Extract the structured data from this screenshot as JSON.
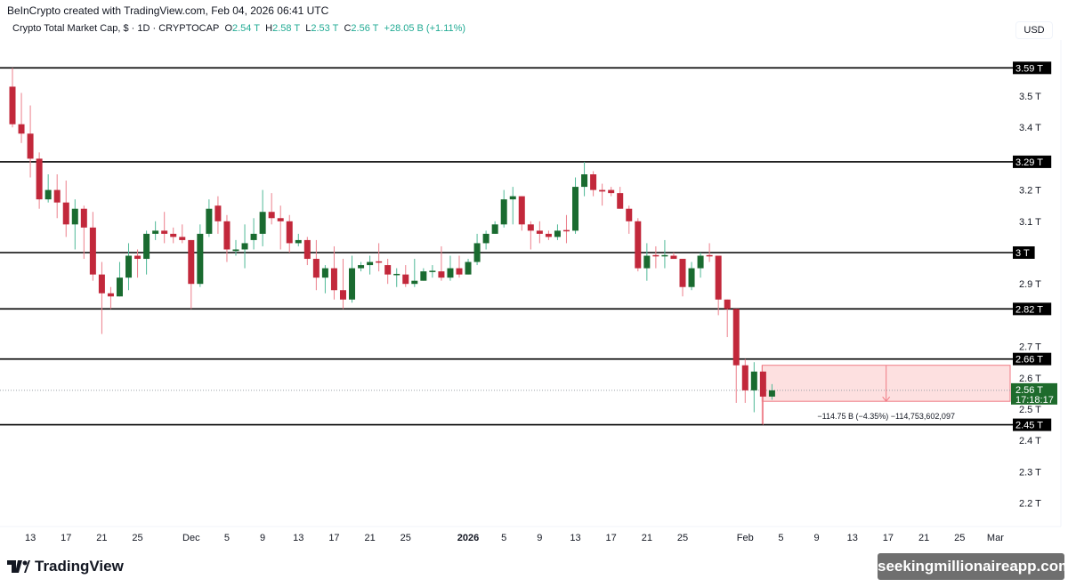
{
  "header": {
    "credit": "BeInCrypto created with TradingView.com, Feb 04, 2026 06:41 UTC",
    "symbol": "Crypto Total Market Cap, $ · 1D · CRYPTOCAP",
    "o_label": "O",
    "o_value": "2.54 T",
    "h_label": "H",
    "h_value": "2.58 T",
    "l_label": "L",
    "l_value": "2.53 T",
    "c_label": "C",
    "c_value": "2.56 T",
    "change": "+28.05 B (+1.11%)",
    "currency": "USD"
  },
  "footer": {
    "logo_text": "TradingView",
    "watermark": "seekingmillionaireapp.com"
  },
  "colors": {
    "up_body": "#1a6b30",
    "up_wick": "#4fb997",
    "down_body": "#c2283b",
    "down_wick": "#ec7f8b",
    "level_line": "#000000",
    "measure_fill": "#fde0e0",
    "measure_border": "#f07a84",
    "last_price_bg": "#1e6b2c"
  },
  "chart_data": {
    "type": "candlestick",
    "title": "Crypto Total Market Cap, $ · 1D · CRYPTOCAP",
    "unit": "T",
    "start_date": "2025-11-11",
    "ylim": [
      2.12,
      3.68
    ],
    "y_ticks": [
      "3.5 T",
      "3.4 T",
      "3.2 T",
      "3.1 T",
      "2.9 T",
      "2.7 T",
      "2.6 T",
      "2.5 T",
      "2.4 T",
      "2.3 T",
      "2.2 T"
    ],
    "y_tick_values": [
      3.5,
      3.4,
      3.2,
      3.1,
      2.9,
      2.7,
      2.6,
      2.5,
      2.4,
      2.3,
      2.2
    ],
    "x_ticks": [
      {
        "label": "13",
        "date": "2025-11-13"
      },
      {
        "label": "17",
        "date": "2025-11-17"
      },
      {
        "label": "21",
        "date": "2025-11-21"
      },
      {
        "label": "25",
        "date": "2025-11-25"
      },
      {
        "label": "Dec",
        "date": "2025-12-01"
      },
      {
        "label": "5",
        "date": "2025-12-05"
      },
      {
        "label": "9",
        "date": "2025-12-09"
      },
      {
        "label": "13",
        "date": "2025-12-13"
      },
      {
        "label": "17",
        "date": "2025-12-17"
      },
      {
        "label": "21",
        "date": "2025-12-21"
      },
      {
        "label": "25",
        "date": "2025-12-25"
      },
      {
        "label": "2026",
        "date": "2026-01-01",
        "bold": true
      },
      {
        "label": "5",
        "date": "2026-01-05"
      },
      {
        "label": "9",
        "date": "2026-01-09"
      },
      {
        "label": "13",
        "date": "2026-01-13"
      },
      {
        "label": "17",
        "date": "2026-01-17"
      },
      {
        "label": "21",
        "date": "2026-01-21"
      },
      {
        "label": "25",
        "date": "2026-01-25"
      },
      {
        "label": "Feb",
        "date": "2026-02-01"
      },
      {
        "label": "5",
        "date": "2026-02-05"
      },
      {
        "label": "9",
        "date": "2026-02-09"
      },
      {
        "label": "13",
        "date": "2026-02-13"
      },
      {
        "label": "17",
        "date": "2026-02-17"
      },
      {
        "label": "21",
        "date": "2026-02-21"
      },
      {
        "label": "25",
        "date": "2026-02-25"
      },
      {
        "label": "Mar",
        "date": "2026-03-01"
      }
    ],
    "ohlc": [
      [
        3.53,
        3.59,
        3.4,
        3.41
      ],
      [
        3.41,
        3.51,
        3.35,
        3.38
      ],
      [
        3.38,
        3.47,
        3.24,
        3.3
      ],
      [
        3.3,
        3.32,
        3.14,
        3.17
      ],
      [
        3.17,
        3.25,
        3.16,
        3.2
      ],
      [
        3.2,
        3.25,
        3.11,
        3.16
      ],
      [
        3.16,
        3.23,
        3.05,
        3.09
      ],
      [
        3.09,
        3.17,
        3.01,
        3.14
      ],
      [
        3.14,
        3.15,
        2.98,
        3.08
      ],
      [
        3.08,
        3.13,
        2.91,
        2.93
      ],
      [
        2.93,
        2.97,
        2.74,
        2.87
      ],
      [
        2.87,
        2.89,
        2.82,
        2.86
      ],
      [
        2.86,
        2.97,
        2.86,
        2.92
      ],
      [
        2.92,
        3.03,
        2.88,
        2.99
      ],
      [
        2.99,
        3.01,
        2.92,
        2.98
      ],
      [
        2.98,
        3.07,
        2.93,
        3.06
      ],
      [
        3.06,
        3.1,
        3.04,
        3.07
      ],
      [
        3.07,
        3.13,
        3.03,
        3.06
      ],
      [
        3.06,
        3.08,
        3.03,
        3.05
      ],
      [
        3.05,
        3.09,
        3.03,
        3.04
      ],
      [
        3.04,
        3.04,
        2.82,
        2.9
      ],
      [
        2.9,
        3.09,
        2.89,
        3.06
      ],
      [
        3.06,
        3.17,
        3.05,
        3.14
      ],
      [
        3.15,
        3.18,
        3.06,
        3.1
      ],
      [
        3.1,
        3.12,
        2.97,
        3.01
      ],
      [
        3.005,
        3.04,
        2.99,
        3.01
      ],
      [
        3.01,
        3.09,
        2.95,
        3.03
      ],
      [
        3.04,
        3.11,
        3.01,
        3.06
      ],
      [
        3.06,
        3.2,
        3.02,
        3.13
      ],
      [
        3.13,
        3.19,
        3.09,
        3.11
      ],
      [
        3.11,
        3.15,
        3.01,
        3.1
      ],
      [
        3.1,
        3.12,
        3.0,
        3.03
      ],
      [
        3.03,
        3.06,
        3.02,
        3.04
      ],
      [
        3.04,
        3.05,
        2.96,
        2.98
      ],
      [
        2.98,
        3.04,
        2.88,
        2.92
      ],
      [
        2.92,
        2.96,
        2.87,
        2.95
      ],
      [
        2.95,
        3.02,
        2.85,
        2.88
      ],
      [
        2.88,
        2.98,
        2.82,
        2.85
      ],
      [
        2.85,
        2.99,
        2.84,
        2.95
      ],
      [
        2.95,
        2.97,
        2.94,
        2.96
      ],
      [
        2.96,
        2.99,
        2.93,
        2.97
      ],
      [
        2.972,
        3.03,
        2.94,
        2.968
      ],
      [
        2.96,
        2.98,
        2.9,
        2.93
      ],
      [
        2.928,
        2.95,
        2.89,
        2.932
      ],
      [
        2.93,
        2.96,
        2.89,
        2.9
      ],
      [
        2.9,
        2.98,
        2.89,
        2.91
      ],
      [
        2.91,
        2.95,
        2.91,
        2.94
      ],
      [
        2.938,
        2.96,
        2.92,
        2.942
      ],
      [
        2.94,
        3.02,
        2.91,
        2.92
      ],
      [
        2.92,
        2.99,
        2.91,
        2.95
      ],
      [
        2.95,
        2.99,
        2.92,
        2.93
      ],
      [
        2.93,
        2.98,
        2.93,
        2.97
      ],
      [
        2.97,
        3.06,
        2.96,
        3.03
      ],
      [
        3.03,
        3.07,
        3.01,
        3.06
      ],
      [
        3.06,
        3.1,
        3.06,
        3.09
      ],
      [
        3.09,
        3.2,
        3.08,
        3.17
      ],
      [
        3.17,
        3.21,
        3.09,
        3.18
      ],
      [
        3.18,
        3.18,
        3.07,
        3.09
      ],
      [
        3.09,
        3.1,
        3.01,
        3.07
      ],
      [
        3.07,
        3.1,
        3.03,
        3.06
      ],
      [
        3.06,
        3.07,
        3.04,
        3.05
      ],
      [
        3.05,
        3.09,
        3.04,
        3.07
      ],
      [
        3.072,
        3.12,
        3.03,
        3.068
      ],
      [
        3.07,
        3.24,
        3.06,
        3.21
      ],
      [
        3.21,
        3.29,
        3.18,
        3.25
      ],
      [
        3.25,
        3.26,
        3.18,
        3.2
      ],
      [
        3.2,
        3.22,
        3.15,
        3.195
      ],
      [
        3.2,
        3.21,
        3.18,
        3.19
      ],
      [
        3.19,
        3.21,
        3.14,
        3.14
      ],
      [
        3.14,
        3.15,
        3.06,
        3.1
      ],
      [
        3.1,
        3.11,
        2.94,
        2.95
      ],
      [
        2.95,
        3.03,
        2.91,
        2.99
      ],
      [
        2.992,
        3.02,
        2.95,
        2.988
      ],
      [
        2.988,
        3.04,
        2.95,
        2.992
      ],
      [
        2.99,
        3.0,
        2.98,
        2.98
      ],
      [
        2.98,
        2.98,
        2.86,
        2.89
      ],
      [
        2.89,
        2.97,
        2.88,
        2.95
      ],
      [
        2.95,
        3.0,
        2.92,
        2.99
      ],
      [
        2.992,
        3.03,
        2.97,
        2.988
      ],
      [
        2.99,
        2.99,
        2.8,
        2.85
      ],
      [
        2.85,
        2.85,
        2.73,
        2.82
      ],
      [
        2.82,
        2.82,
        2.52,
        2.64
      ],
      [
        2.64,
        2.66,
        2.52,
        2.56
      ],
      [
        2.56,
        2.65,
        2.49,
        2.62
      ],
      [
        2.62,
        2.62,
        2.45,
        2.54
      ],
      [
        2.54,
        2.58,
        2.53,
        2.56
      ]
    ],
    "levels": [
      {
        "label": "3.59 T",
        "value": 3.59
      },
      {
        "label": "3.29 T",
        "value": 3.29
      },
      {
        "label": "3 T",
        "value": 3.0
      },
      {
        "label": "2.82 T",
        "value": 2.82
      },
      {
        "label": "2.66 T",
        "value": 2.66
      },
      {
        "label": "2.45 T",
        "value": 2.45
      }
    ],
    "last_price": {
      "label": "2.56 T",
      "value": 2.56,
      "countdown": "17:18:17"
    },
    "measure": {
      "from_date": "2026-02-03",
      "to_date": "2026-03-05",
      "top": 2.64,
      "bottom": 2.525,
      "text": "−114.75 B (−4.35%) −114,753,602,097"
    }
  }
}
